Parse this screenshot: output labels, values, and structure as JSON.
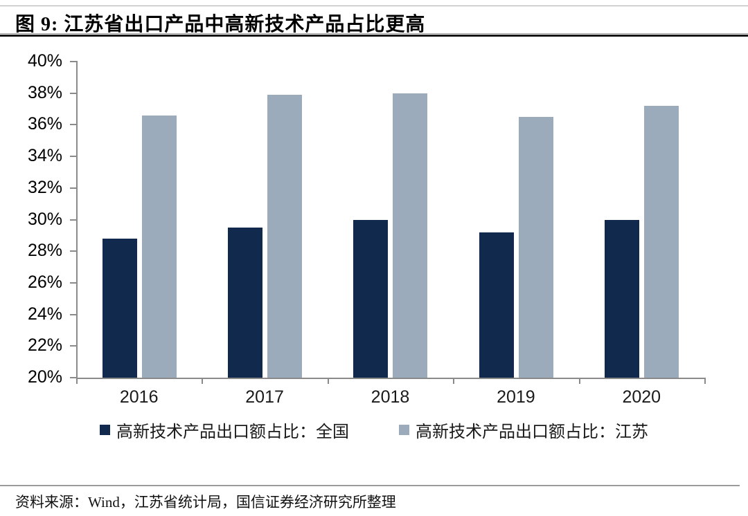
{
  "header": {
    "figure_title": "图 9: 江苏省出口产品中高新技术产品占比更高"
  },
  "footer": {
    "source": "资料来源：Wind，江苏省统计局，国信证券经济研究所整理"
  },
  "colors": {
    "series_national": "#12294E",
    "series_jiangsu": "#9CABBC",
    "axis": "#8A8A8A",
    "title_rule": "#161616"
  },
  "chart_data": {
    "type": "bar",
    "title": "图 9: 江苏省出口产品中高新技术产品占比更高",
    "categories": [
      "2016",
      "2017",
      "2018",
      "2019",
      "2020"
    ],
    "series": [
      {
        "name": "高新技术产品出口额占比：全国",
        "color": "#12294E",
        "values": [
          28.8,
          29.5,
          30.0,
          29.2,
          30.0
        ]
      },
      {
        "name": "高新技术产品出口额占比：江苏",
        "color": "#9CABBC",
        "values": [
          36.6,
          37.9,
          38.0,
          36.5,
          37.2
        ]
      }
    ],
    "xlabel": "",
    "ylabel": "",
    "ylim": [
      20,
      40
    ],
    "ytick_step": 2,
    "ytick_labels": [
      "20%",
      "22%",
      "24%",
      "26%",
      "28%",
      "30%",
      "32%",
      "34%",
      "36%",
      "38%",
      "40%"
    ],
    "grid": false,
    "legend_position": "bottom",
    "source": "资料来源：Wind，江苏省统计局，国信证券经济研究所整理"
  }
}
